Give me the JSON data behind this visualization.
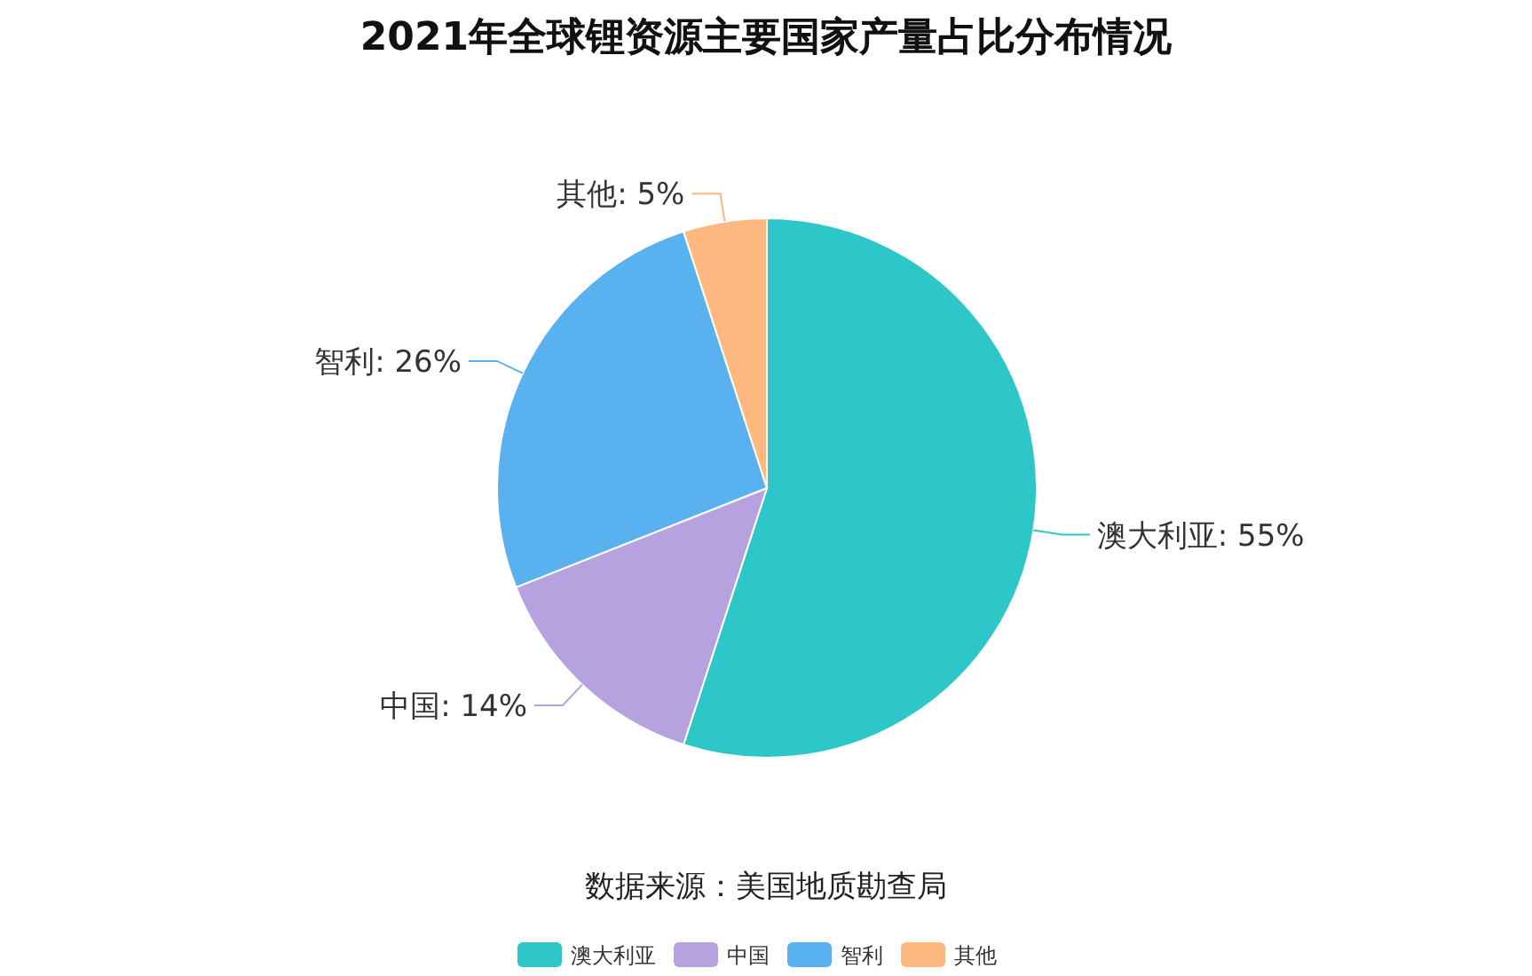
{
  "chart_data": {
    "type": "pie",
    "title": "2021年全球锂资源主要国家产量占比分布情况",
    "categories": [
      "澳大利亚",
      "中国",
      "智利",
      "其他"
    ],
    "values": [
      55,
      14,
      26,
      5
    ],
    "colors": [
      "#2ec7c9",
      "#b6a2de",
      "#5ab1ef",
      "#ffb980"
    ],
    "value_labels": [
      "澳大利亚: 55%",
      "中国: 14%",
      "智利: 26%",
      "其他: 5%"
    ],
    "legend": "bottom",
    "annotations": [
      "数据来源：美国地质勘查局"
    ]
  }
}
